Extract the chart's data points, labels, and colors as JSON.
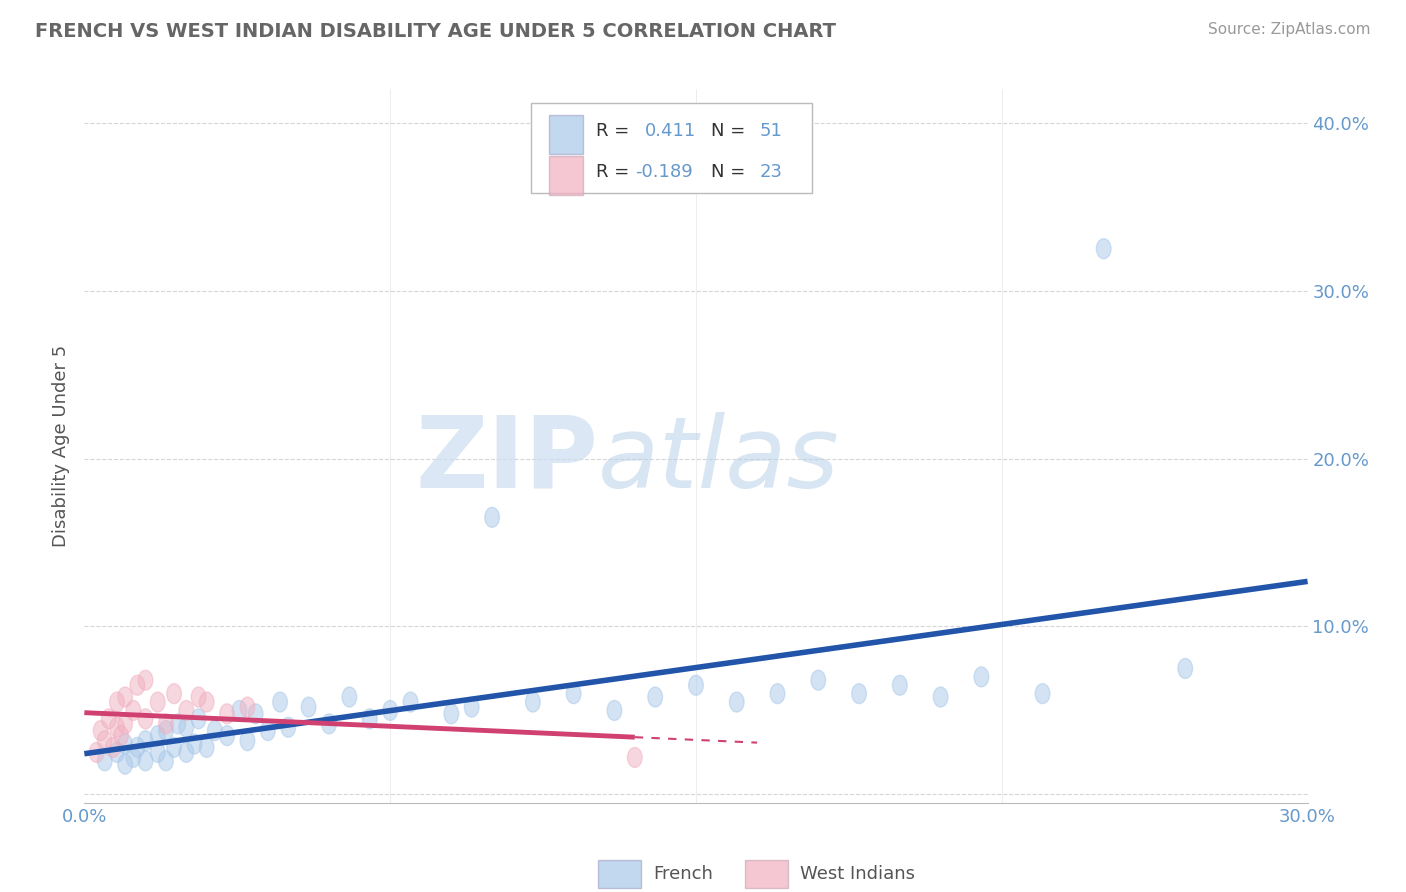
{
  "title": "FRENCH VS WEST INDIAN DISABILITY AGE UNDER 5 CORRELATION CHART",
  "source": "Source: ZipAtlas.com",
  "xlim": [
    0.0,
    0.3
  ],
  "ylim": [
    -0.005,
    0.42
  ],
  "ylabel": "Disability Age Under 5",
  "french_R": 0.411,
  "french_N": 51,
  "wi_R": -0.189,
  "wi_N": 23,
  "french_color": "#a8c8e8",
  "french_line_color": "#2255aa",
  "wi_color": "#f0b0c0",
  "wi_line_color": "#d04070",
  "background_color": "#ffffff",
  "french_scatter_x": [
    0.005,
    0.008,
    0.01,
    0.01,
    0.012,
    0.013,
    0.015,
    0.015,
    0.018,
    0.018,
    0.02,
    0.02,
    0.022,
    0.023,
    0.025,
    0.025,
    0.027,
    0.028,
    0.03,
    0.032,
    0.035,
    0.038,
    0.04,
    0.042,
    0.045,
    0.048,
    0.05,
    0.055,
    0.06,
    0.065,
    0.07,
    0.075,
    0.08,
    0.09,
    0.095,
    0.1,
    0.11,
    0.12,
    0.13,
    0.14,
    0.15,
    0.16,
    0.17,
    0.18,
    0.19,
    0.2,
    0.21,
    0.22,
    0.235,
    0.25,
    0.27
  ],
  "french_scatter_y": [
    0.02,
    0.025,
    0.018,
    0.03,
    0.022,
    0.028,
    0.02,
    0.032,
    0.025,
    0.035,
    0.02,
    0.038,
    0.028,
    0.042,
    0.025,
    0.04,
    0.03,
    0.045,
    0.028,
    0.038,
    0.035,
    0.05,
    0.032,
    0.048,
    0.038,
    0.055,
    0.04,
    0.052,
    0.042,
    0.058,
    0.045,
    0.05,
    0.055,
    0.048,
    0.052,
    0.165,
    0.055,
    0.06,
    0.05,
    0.058,
    0.065,
    0.055,
    0.06,
    0.068,
    0.06,
    0.065,
    0.058,
    0.07,
    0.06,
    0.325,
    0.075
  ],
  "wi_scatter_x": [
    0.003,
    0.004,
    0.005,
    0.006,
    0.007,
    0.008,
    0.008,
    0.009,
    0.01,
    0.01,
    0.012,
    0.013,
    0.015,
    0.015,
    0.018,
    0.02,
    0.022,
    0.025,
    0.028,
    0.03,
    0.035,
    0.04,
    0.135
  ],
  "wi_scatter_y": [
    0.025,
    0.038,
    0.032,
    0.045,
    0.028,
    0.04,
    0.055,
    0.035,
    0.042,
    0.058,
    0.05,
    0.065,
    0.045,
    0.068,
    0.055,
    0.042,
    0.06,
    0.05,
    0.058,
    0.055,
    0.048,
    0.052,
    0.022
  ],
  "grid_color": "#cccccc",
  "title_color": "#666666",
  "tick_label_color": "#6699cc",
  "legend_text_color": "#333333",
  "yticks": [
    0.0,
    0.1,
    0.2,
    0.3,
    0.4
  ],
  "ytick_labels": [
    "",
    "10.0%",
    "20.0%",
    "30.0%",
    "40.0%"
  ],
  "xticks": [
    0.0,
    0.3
  ],
  "xtick_labels": [
    "0.0%",
    "30.0%"
  ]
}
